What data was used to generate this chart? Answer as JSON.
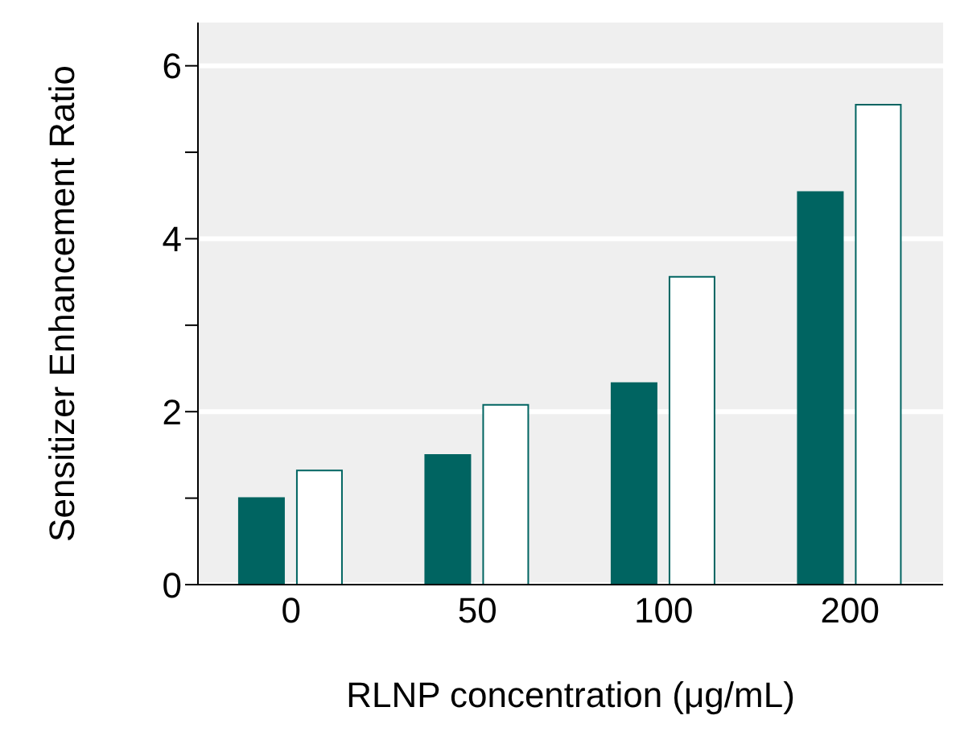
{
  "chart_data": {
    "type": "bar",
    "xlabel": "RLNP concentration (μg/mL)",
    "ylabel": "Sensitizer Enhancement Ratio",
    "categories": [
      "0",
      "50",
      "100",
      "200"
    ],
    "series": [
      {
        "color": "#006461",
        "values": [
          1.0,
          1.5,
          2.33,
          4.54
        ]
      },
      {
        "color": "#ffffff",
        "values": [
          1.32,
          2.08,
          3.56,
          5.55
        ]
      }
    ],
    "ylim": [
      0,
      6.5
    ],
    "yticks": [
      0,
      {
        "value": 1,
        "label": null
      },
      2,
      {
        "value": 3,
        "label": null
      },
      4,
      {
        "value": 5,
        "label": null
      },
      6
    ],
    "grid": "y"
  }
}
